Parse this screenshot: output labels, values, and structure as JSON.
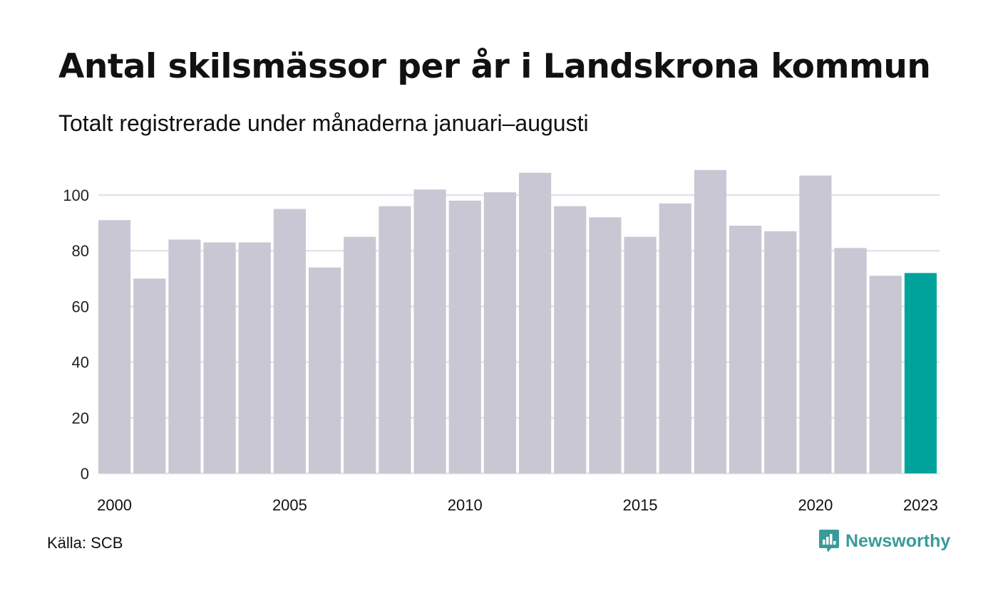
{
  "header": {
    "title": "Antal skilsmässor per år i Landskrona kommun",
    "subtitle": "Totalt registrerade under månaderna januari–augusti"
  },
  "footer": {
    "source": "Källa: SCB",
    "brand": "Newsworthy"
  },
  "colors": {
    "bar": "#c9c7d3",
    "highlight": "#00a39b",
    "grid": "#e4e3ea",
    "brand": "#3a9a9a"
  },
  "chart_data": {
    "type": "bar",
    "title": "Antal skilsmässor per år i Landskrona kommun",
    "subtitle": "Totalt registrerade under månaderna januari–augusti",
    "categories": [
      "2000",
      "2001",
      "2002",
      "2003",
      "2004",
      "2005",
      "2006",
      "2007",
      "2008",
      "2009",
      "2010",
      "2011",
      "2012",
      "2013",
      "2014",
      "2015",
      "2016",
      "2017",
      "2018",
      "2019",
      "2020",
      "2021",
      "2022",
      "2023"
    ],
    "values": [
      91,
      70,
      84,
      83,
      83,
      95,
      74,
      85,
      96,
      102,
      98,
      101,
      108,
      96,
      92,
      85,
      97,
      109,
      89,
      87,
      107,
      81,
      71,
      72
    ],
    "highlight_category": "2023",
    "x_tick_labels": [
      "2000",
      "2005",
      "2010",
      "2015",
      "2020",
      "2023"
    ],
    "y_ticks": [
      0,
      20,
      40,
      60,
      80,
      100
    ],
    "ylim": [
      0,
      110
    ],
    "grid": true,
    "legend": "none",
    "xlabel": "",
    "ylabel": ""
  }
}
